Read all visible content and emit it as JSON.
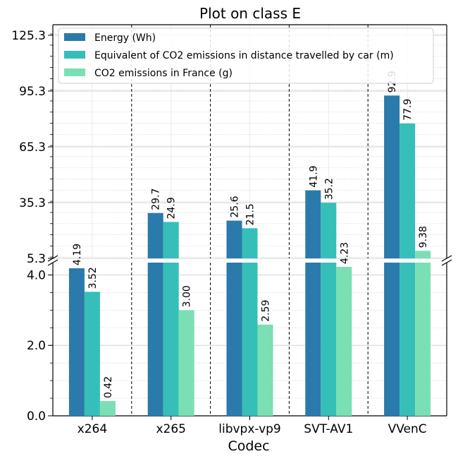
{
  "chart_data": {
    "type": "bar",
    "title": "Plot on class E",
    "xlabel": "Codec",
    "ylabel": "",
    "categories": [
      "x264",
      "x265",
      "libvpx-vp9",
      "SVT-AV1",
      "VVenC"
    ],
    "series": [
      {
        "name": "Energy (Wh)",
        "color": "#2a7aab",
        "values": [
          4.19,
          29.7,
          25.6,
          41.9,
          92.9
        ],
        "labels": [
          "4.19",
          "29.7",
          "25.6",
          "41.9",
          "92.9"
        ]
      },
      {
        "name": "Equivalent of CO2 emissions in distance travelled by car (m)",
        "color": "#35bfb8",
        "values": [
          3.52,
          24.9,
          21.5,
          35.2,
          77.9
        ],
        "labels": [
          "3.52",
          "24.9",
          "21.5",
          "35.2",
          "77.9"
        ]
      },
      {
        "name": "CO2 emissions in France (g)",
        "color": "#7bdfb4",
        "values": [
          0.42,
          3.0,
          2.59,
          4.23,
          9.38
        ],
        "labels": [
          "0.42",
          "3.00",
          "2.59",
          "4.23",
          "9.38"
        ]
      }
    ],
    "axis_break": true,
    "lower_axis": {
      "ylim": [
        0,
        4.35
      ],
      "ticks": [
        0.0,
        2.0,
        4.0
      ],
      "tick_labels": [
        "0.0",
        "2.0",
        "4.0"
      ]
    },
    "upper_axis": {
      "ylim": [
        5.3,
        131.0
      ],
      "ticks": [
        5.3,
        35.3,
        65.3,
        95.3,
        125.3
      ],
      "tick_labels": [
        "5.3",
        "35.3",
        "65.3",
        "95.3",
        "125.3"
      ]
    },
    "grid": true,
    "legend_placement": "top-left"
  }
}
